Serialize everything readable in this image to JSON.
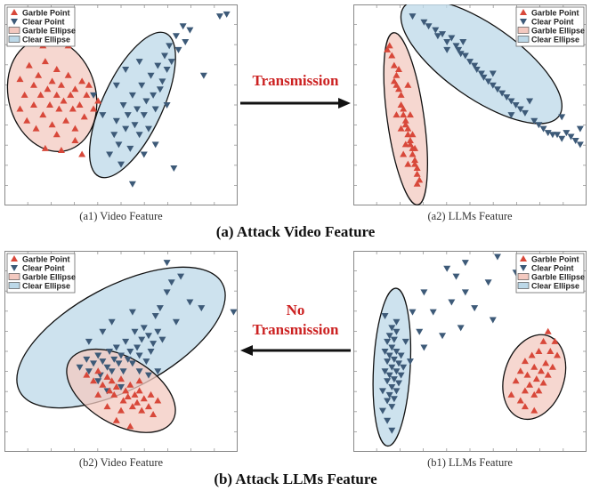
{
  "legend": {
    "garble_point": "Garble Point",
    "clear_point": "Clear Point",
    "garble_ellipse": "Garble Ellipse",
    "clear_ellipse": "Clear Ellipse"
  },
  "colors": {
    "garble": "#d8483a",
    "clear": "#3d5a78",
    "garble_fill": "#f3c9c0",
    "clear_fill": "#bcd8e8",
    "arrow_label": "#cc2222"
  },
  "captions": {
    "a1": "(a1) Video Feature",
    "a2": "(a2) LLMs Feature",
    "b2": "(b2) Video Feature",
    "b1": "(b1) LLMs Feature"
  },
  "sections": {
    "a": "(a) Attack Video Feature",
    "b": "(b) Attack LLMs Feature"
  },
  "arrows": {
    "top_label": "Transmission",
    "bottom_label_line1": "No",
    "bottom_label_line2": "Transmission"
  },
  "chart_data": [
    {
      "type": "scatter",
      "id": "a1",
      "xlim": [
        0,
        100
      ],
      "ylim": [
        0,
        100
      ],
      "garble_ellipse": {
        "cx": 20,
        "cy": 55,
        "rx": 19,
        "ry": 29,
        "angle": -15
      },
      "clear_ellipse": {
        "cx": 55,
        "cy": 50,
        "rx": 13,
        "ry": 40,
        "angle": 25
      },
      "garble_points": [
        [
          6,
          63
        ],
        [
          8,
          55
        ],
        [
          10,
          70
        ],
        [
          12,
          60
        ],
        [
          12,
          50
        ],
        [
          14,
          65
        ],
        [
          15,
          55
        ],
        [
          16,
          45
        ],
        [
          17,
          72
        ],
        [
          18,
          58
        ],
        [
          19,
          50
        ],
        [
          20,
          62
        ],
        [
          20,
          40
        ],
        [
          22,
          55
        ],
        [
          22,
          68
        ],
        [
          23,
          48
        ],
        [
          24,
          60
        ],
        [
          25,
          52
        ],
        [
          26,
          42
        ],
        [
          27,
          65
        ],
        [
          28,
          55
        ],
        [
          29,
          48
        ],
        [
          30,
          58
        ],
        [
          30,
          38
        ],
        [
          32,
          50
        ],
        [
          33,
          62
        ],
        [
          34,
          44
        ],
        [
          35,
          55
        ],
        [
          36,
          60
        ],
        [
          38,
          48
        ],
        [
          17,
          28
        ],
        [
          24,
          27
        ],
        [
          9,
          42
        ],
        [
          27,
          80
        ],
        [
          33,
          25
        ],
        [
          40,
          52
        ],
        [
          6,
          48
        ],
        [
          13,
          38
        ],
        [
          30,
          32
        ],
        [
          22,
          35
        ],
        [
          16,
          80
        ]
      ],
      "clear_points": [
        [
          45,
          25
        ],
        [
          47,
          35
        ],
        [
          48,
          42
        ],
        [
          49,
          30
        ],
        [
          50,
          20
        ],
        [
          51,
          50
        ],
        [
          52,
          38
        ],
        [
          53,
          45
        ],
        [
          54,
          28
        ],
        [
          55,
          55
        ],
        [
          56,
          40
        ],
        [
          57,
          48
        ],
        [
          58,
          35
        ],
        [
          59,
          60
        ],
        [
          60,
          45
        ],
        [
          61,
          52
        ],
        [
          62,
          38
        ],
        [
          63,
          65
        ],
        [
          64,
          55
        ],
        [
          65,
          48
        ],
        [
          66,
          70
        ],
        [
          67,
          58
        ],
        [
          68,
          62
        ],
        [
          69,
          75
        ],
        [
          70,
          68
        ],
        [
          71,
          80
        ],
        [
          72,
          72
        ],
        [
          74,
          85
        ],
        [
          75,
          78
        ],
        [
          77,
          90
        ],
        [
          78,
          82
        ],
        [
          80,
          88
        ],
        [
          48,
          60
        ],
        [
          52,
          68
        ],
        [
          58,
          72
        ],
        [
          73,
          18
        ],
        [
          86,
          65
        ],
        [
          93,
          95
        ],
        [
          96,
          96
        ],
        [
          38,
          55
        ],
        [
          60,
          25
        ],
        [
          55,
          10
        ],
        [
          42,
          45
        ],
        [
          70,
          50
        ],
        [
          65,
          30
        ]
      ]
    },
    {
      "type": "scatter",
      "id": "a2",
      "xlim": [
        0,
        100
      ],
      "ylim": [
        0,
        100
      ],
      "garble_ellipse": {
        "cx": 22,
        "cy": 43,
        "rx": 8,
        "ry": 44,
        "angle": -8
      },
      "clear_ellipse": {
        "cx": 55,
        "cy": 72,
        "rx": 16,
        "ry": 48,
        "angle": -55
      },
      "garble_points": [
        [
          15,
          80
        ],
        [
          16,
          75
        ],
        [
          17,
          70
        ],
        [
          18,
          65
        ],
        [
          18,
          60
        ],
        [
          19,
          58
        ],
        [
          20,
          55
        ],
        [
          20,
          50
        ],
        [
          21,
          48
        ],
        [
          21,
          45
        ],
        [
          22,
          42
        ],
        [
          22,
          40
        ],
        [
          23,
          38
        ],
        [
          23,
          35
        ],
        [
          24,
          32
        ],
        [
          24,
          30
        ],
        [
          25,
          28
        ],
        [
          25,
          25
        ],
        [
          26,
          22
        ],
        [
          26,
          20
        ],
        [
          27,
          18
        ],
        [
          27,
          15
        ],
        [
          28,
          12
        ],
        [
          22,
          30
        ],
        [
          20,
          38
        ],
        [
          18,
          45
        ],
        [
          24,
          45
        ],
        [
          25,
          35
        ],
        [
          23,
          20
        ],
        [
          21,
          25
        ],
        [
          19,
          68
        ],
        [
          26,
          28
        ],
        [
          27,
          10
        ],
        [
          23,
          60
        ],
        [
          17,
          62
        ],
        [
          14,
          78
        ]
      ],
      "clear_points": [
        [
          25,
          95
        ],
        [
          30,
          92
        ],
        [
          32,
          90
        ],
        [
          35,
          88
        ],
        [
          36,
          85
        ],
        [
          38,
          86
        ],
        [
          40,
          82
        ],
        [
          42,
          84
        ],
        [
          44,
          80
        ],
        [
          45,
          78
        ],
        [
          46,
          76
        ],
        [
          48,
          75
        ],
        [
          50,
          72
        ],
        [
          52,
          70
        ],
        [
          53,
          68
        ],
        [
          55,
          66
        ],
        [
          56,
          64
        ],
        [
          58,
          62
        ],
        [
          60,
          60
        ],
        [
          62,
          58
        ],
        [
          64,
          56
        ],
        [
          66,
          54
        ],
        [
          68,
          52
        ],
        [
          70,
          50
        ],
        [
          72,
          48
        ],
        [
          74,
          46
        ],
        [
          78,
          42
        ],
        [
          80,
          40
        ],
        [
          82,
          38
        ],
        [
          84,
          36
        ],
        [
          86,
          35
        ],
        [
          88,
          35
        ],
        [
          90,
          33
        ],
        [
          92,
          36
        ],
        [
          94,
          34
        ],
        [
          96,
          32
        ],
        [
          98,
          30
        ],
        [
          40,
          78
        ],
        [
          47,
          82
        ],
        [
          60,
          66
        ],
        [
          68,
          45
        ],
        [
          76,
          52
        ],
        [
          90,
          44
        ],
        [
          98,
          38
        ]
      ]
    },
    {
      "type": "scatter",
      "id": "b2",
      "xlim": [
        0,
        100
      ],
      "ylim": [
        0,
        100
      ],
      "garble_ellipse": {
        "cx": 50,
        "cy": 30,
        "rx": 26,
        "ry": 17,
        "angle": 30
      },
      "clear_ellipse": {
        "cx": 50,
        "cy": 57,
        "rx": 50,
        "ry": 26,
        "angle": -28
      },
      "garble_points": [
        [
          35,
          38
        ],
        [
          38,
          35
        ],
        [
          40,
          40
        ],
        [
          42,
          33
        ],
        [
          44,
          37
        ],
        [
          45,
          30
        ],
        [
          46,
          35
        ],
        [
          47,
          28
        ],
        [
          48,
          32
        ],
        [
          50,
          36
        ],
        [
          51,
          25
        ],
        [
          52,
          30
        ],
        [
          53,
          27
        ],
        [
          54,
          33
        ],
        [
          55,
          22
        ],
        [
          56,
          28
        ],
        [
          57,
          24
        ],
        [
          58,
          30
        ],
        [
          59,
          20
        ],
        [
          60,
          26
        ],
        [
          62,
          22
        ],
        [
          63,
          28
        ],
        [
          64,
          18
        ],
        [
          50,
          20
        ],
        [
          48,
          15
        ],
        [
          54,
          12
        ],
        [
          40,
          28
        ],
        [
          58,
          35
        ],
        [
          66,
          25
        ],
        [
          44,
          22
        ]
      ],
      "clear_points": [
        [
          32,
          42
        ],
        [
          35,
          46
        ],
        [
          36,
          40
        ],
        [
          38,
          44
        ],
        [
          40,
          48
        ],
        [
          41,
          38
        ],
        [
          42,
          45
        ],
        [
          44,
          42
        ],
        [
          45,
          50
        ],
        [
          46,
          40
        ],
        [
          47,
          46
        ],
        [
          48,
          52
        ],
        [
          49,
          44
        ],
        [
          50,
          48
        ],
        [
          51,
          40
        ],
        [
          52,
          55
        ],
        [
          53,
          46
        ],
        [
          54,
          50
        ],
        [
          55,
          44
        ],
        [
          56,
          60
        ],
        [
          57,
          52
        ],
        [
          58,
          48
        ],
        [
          59,
          56
        ],
        [
          60,
          62
        ],
        [
          61,
          45
        ],
        [
          62,
          58
        ],
        [
          63,
          50
        ],
        [
          64,
          54
        ],
        [
          65,
          68
        ],
        [
          66,
          60
        ],
        [
          67,
          72
        ],
        [
          68,
          56
        ],
        [
          70,
          80
        ],
        [
          72,
          85
        ],
        [
          74,
          65
        ],
        [
          76,
          88
        ],
        [
          80,
          75
        ],
        [
          85,
          72
        ],
        [
          70,
          95
        ],
        [
          99,
          70
        ],
        [
          42,
          60
        ],
        [
          46,
          65
        ],
        [
          55,
          70
        ],
        [
          36,
          55
        ],
        [
          58,
          40
        ],
        [
          62,
          38
        ],
        [
          44,
          30
        ],
        [
          50,
          32
        ],
        [
          40,
          35
        ],
        [
          66,
          40
        ]
      ]
    },
    {
      "type": "scatter",
      "id": "b1",
      "xlim": [
        0,
        100
      ],
      "ylim": [
        0,
        100
      ],
      "garble_ellipse": {
        "cx": 78,
        "cy": 37,
        "rx": 13,
        "ry": 22,
        "angle": 18
      },
      "clear_ellipse": {
        "cx": 16,
        "cy": 42,
        "rx": 8,
        "ry": 40,
        "angle": 3
      },
      "garble_points": [
        [
          68,
          28
        ],
        [
          70,
          35
        ],
        [
          72,
          25
        ],
        [
          72,
          40
        ],
        [
          74,
          30
        ],
        [
          74,
          45
        ],
        [
          75,
          38
        ],
        [
          76,
          33
        ],
        [
          77,
          48
        ],
        [
          78,
          28
        ],
        [
          78,
          42
        ],
        [
          79,
          36
        ],
        [
          80,
          30
        ],
        [
          80,
          50
        ],
        [
          81,
          40
        ],
        [
          82,
          34
        ],
        [
          82,
          55
        ],
        [
          83,
          44
        ],
        [
          84,
          38
        ],
        [
          85,
          50
        ],
        [
          86,
          42
        ],
        [
          87,
          55
        ],
        [
          74,
          22
        ],
        [
          78,
          20
        ],
        [
          88,
          48
        ],
        [
          84,
          60
        ]
      ],
      "clear_points": [
        [
          12,
          20
        ],
        [
          12,
          30
        ],
        [
          13,
          40
        ],
        [
          13,
          50
        ],
        [
          14,
          25
        ],
        [
          14,
          35
        ],
        [
          14,
          45
        ],
        [
          14,
          55
        ],
        [
          15,
          28
        ],
        [
          15,
          38
        ],
        [
          15,
          48
        ],
        [
          15,
          58
        ],
        [
          16,
          22
        ],
        [
          16,
          32
        ],
        [
          16,
          42
        ],
        [
          16,
          52
        ],
        [
          16,
          62
        ],
        [
          17,
          26
        ],
        [
          17,
          36
        ],
        [
          17,
          46
        ],
        [
          17,
          56
        ],
        [
          18,
          30
        ],
        [
          18,
          40
        ],
        [
          18,
          50
        ],
        [
          18,
          60
        ],
        [
          19,
          34
        ],
        [
          19,
          44
        ],
        [
          20,
          38
        ],
        [
          20,
          48
        ],
        [
          21,
          42
        ],
        [
          14,
          15
        ],
        [
          16,
          10
        ],
        [
          18,
          65
        ],
        [
          13,
          68
        ],
        [
          22,
          55
        ],
        [
          24,
          45
        ],
        [
          28,
          60
        ],
        [
          30,
          52
        ],
        [
          34,
          70
        ],
        [
          38,
          58
        ],
        [
          42,
          75
        ],
        [
          46,
          62
        ],
        [
          48,
          80
        ],
        [
          52,
          72
        ],
        [
          58,
          85
        ],
        [
          60,
          66
        ],
        [
          40,
          92
        ],
        [
          44,
          88
        ],
        [
          48,
          95
        ],
        [
          62,
          98
        ],
        [
          70,
          90
        ],
        [
          30,
          80
        ],
        [
          25,
          70
        ]
      ]
    }
  ]
}
